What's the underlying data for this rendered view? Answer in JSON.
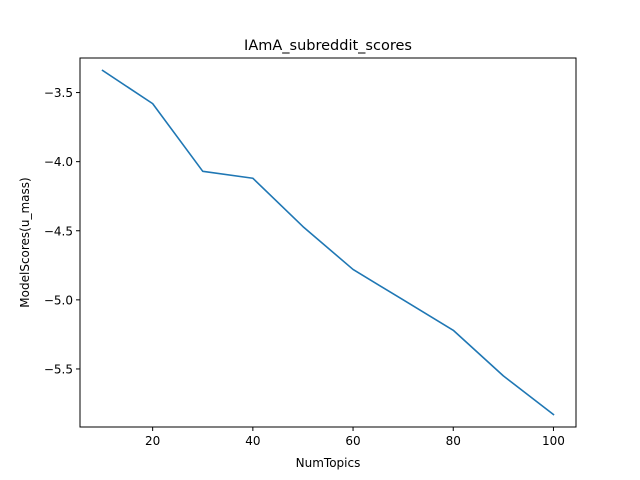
{
  "chart_data": {
    "type": "line",
    "title": "IAmA_subreddit_scores",
    "xlabel": "NumTopics",
    "ylabel": "ModelScores(u_mass)",
    "xlim": [
      5.5,
      104.5
    ],
    "ylim": [
      -5.92,
      -3.25
    ],
    "xticks": [
      20,
      40,
      60,
      80,
      100
    ],
    "xtick_labels": [
      "20",
      "40",
      "60",
      "80",
      "100"
    ],
    "yticks": [
      -3.5,
      -4.0,
      -4.5,
      -5.0,
      -5.5
    ],
    "ytick_labels": [
      "−3.5",
      "−4.0",
      "−4.5",
      "−5.0",
      "−5.5"
    ],
    "grid": false,
    "series": [
      {
        "color": "#1f77b4",
        "x": [
          10,
          20,
          30,
          40,
          50,
          60,
          70,
          80,
          90,
          100
        ],
        "y": [
          -3.34,
          -3.58,
          -4.07,
          -4.12,
          -4.47,
          -4.78,
          -5.0,
          -5.22,
          -5.55,
          -5.83
        ]
      }
    ]
  }
}
